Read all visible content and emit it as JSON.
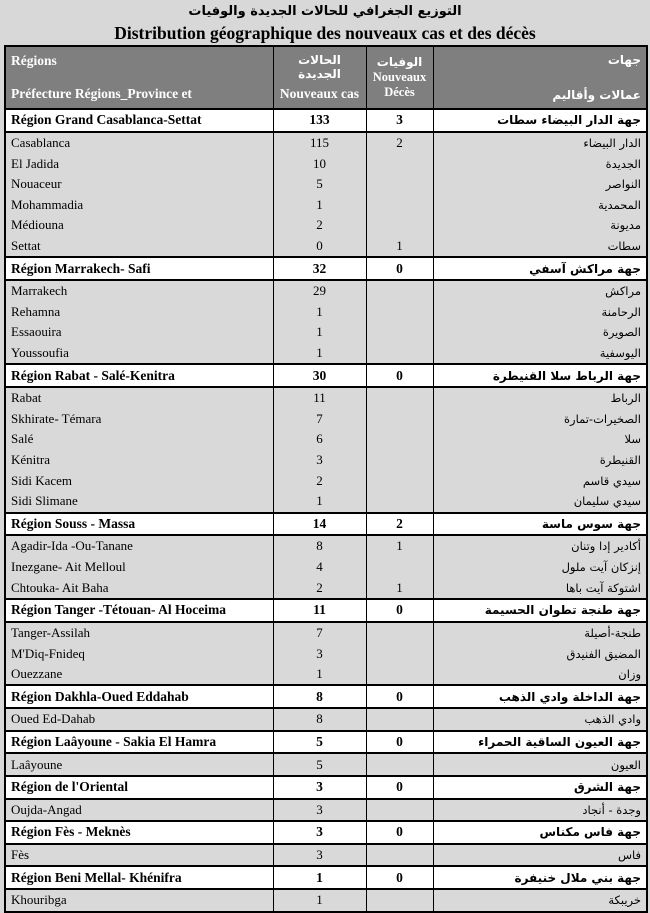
{
  "page": {
    "title_ar": "التوزيع الجغرافي للحالات الجديدة والوفيات",
    "title_fr": "Distribution géographique des nouveaux cas et des décès"
  },
  "colors": {
    "page_background": "#d8d8d8",
    "header_background": "#7f7f7f",
    "header_text": "#ffffff",
    "province_row_background": "#d9d9d9",
    "region_row_background": "#ffffff",
    "border": "#000000"
  },
  "table": {
    "header": {
      "col1_line1": "Régions",
      "col1_line2": "Préfecture Régions_Province et",
      "col2_ar": "الحالات الجديدة",
      "col2_fr": "Nouveaux cas",
      "col3_ar": "الوفيات",
      "col3_fr_line1": "Nouveaux",
      "col3_fr_line2": "Décès",
      "col4_ar_line1": "جهات",
      "col4_ar_line2": "عمالات وأقاليم"
    },
    "rows": [
      {
        "type": "region",
        "name_fr": "Région Grand Casablanca-Settat",
        "cases": "133",
        "deaths": "3",
        "name_ar": "جهة الدار البيضاء سطات"
      },
      {
        "type": "province",
        "name_fr": "Casablanca",
        "cases": "115",
        "deaths": "2",
        "name_ar": "الدار البيضاء"
      },
      {
        "type": "province",
        "name_fr": "El Jadida",
        "cases": "10",
        "deaths": "",
        "name_ar": "الجديدة"
      },
      {
        "type": "province",
        "name_fr": "Nouaceur",
        "cases": "5",
        "deaths": "",
        "name_ar": "النواصر"
      },
      {
        "type": "province",
        "name_fr": "Mohammadia",
        "cases": "1",
        "deaths": "",
        "name_ar": "المحمدية"
      },
      {
        "type": "province",
        "name_fr": "Médiouna",
        "cases": "2",
        "deaths": "",
        "name_ar": "مديونة"
      },
      {
        "type": "province",
        "name_fr": "Settat",
        "cases": "0",
        "deaths": "1",
        "name_ar": "سطات"
      },
      {
        "type": "region",
        "name_fr": "Région Marrakech- Safi",
        "cases": "32",
        "deaths": "0",
        "name_ar": "جهة مراكش آسفي"
      },
      {
        "type": "province",
        "name_fr": "Marrakech",
        "cases": "29",
        "deaths": "",
        "name_ar": "مراكش"
      },
      {
        "type": "province",
        "name_fr": "Rehamna",
        "cases": "1",
        "deaths": "",
        "name_ar": "الرحامنة"
      },
      {
        "type": "province",
        "name_fr": "Essaouira",
        "cases": "1",
        "deaths": "",
        "name_ar": "الصويرة"
      },
      {
        "type": "province",
        "name_fr": "Youssoufia",
        "cases": "1",
        "deaths": "",
        "name_ar": "اليوسفية"
      },
      {
        "type": "region",
        "name_fr": "Région Rabat - Salé-Kenitra",
        "cases": "30",
        "deaths": "0",
        "name_ar": "جهة الرباط سلا القنيطرة"
      },
      {
        "type": "province",
        "name_fr": "Rabat",
        "cases": "11",
        "deaths": "",
        "name_ar": "الرباط"
      },
      {
        "type": "province",
        "name_fr": "Skhirate- Témara",
        "cases": "7",
        "deaths": "",
        "name_ar": "الصخيرات-تمارة"
      },
      {
        "type": "province",
        "name_fr": "Salé",
        "cases": "6",
        "deaths": "",
        "name_ar": "سلا"
      },
      {
        "type": "province",
        "name_fr": "Kénitra",
        "cases": "3",
        "deaths": "",
        "name_ar": "القنيطرة"
      },
      {
        "type": "province",
        "name_fr": "Sidi Kacem",
        "cases": "2",
        "deaths": "",
        "name_ar": "سيدي قاسم"
      },
      {
        "type": "province",
        "name_fr": "Sidi Slimane",
        "cases": "1",
        "deaths": "",
        "name_ar": "سيدي سليمان"
      },
      {
        "type": "region",
        "name_fr": "Région Souss - Massa",
        "cases": "14",
        "deaths": "2",
        "name_ar": "جهة سوس ماسة"
      },
      {
        "type": "province",
        "name_fr": "Agadir-Ida -Ou-Tanane",
        "cases": "8",
        "deaths": "1",
        "name_ar": "أكادير إدا وتنان"
      },
      {
        "type": "province",
        "name_fr": "Inezgane- Ait Melloul",
        "cases": "4",
        "deaths": "",
        "name_ar": "إنزكان آيت ملول"
      },
      {
        "type": "province",
        "name_fr": "Chtouka- Ait Baha",
        "cases": "2",
        "deaths": "1",
        "name_ar": "اشتوكة آيت باها"
      },
      {
        "type": "region",
        "name_fr": "Région Tanger -Tétouan- Al Hoceima",
        "cases": "11",
        "deaths": "0",
        "name_ar": "جهة طنجة تطوان الحسيمة"
      },
      {
        "type": "province",
        "name_fr": "Tanger-Assilah",
        "cases": "7",
        "deaths": "",
        "name_ar": "طنجة-أصيلة"
      },
      {
        "type": "province",
        "name_fr": "M'Diq-Fnideq",
        "cases": "3",
        "deaths": "",
        "name_ar": "المضيق الفنيدق"
      },
      {
        "type": "province",
        "name_fr": "Ouezzane",
        "cases": "1",
        "deaths": "",
        "name_ar": "وزان"
      },
      {
        "type": "region",
        "name_fr": "Région Dakhla-Oued Eddahab",
        "cases": "8",
        "deaths": "0",
        "name_ar": "جهة الداخلة وادي الذهب"
      },
      {
        "type": "province",
        "name_fr": "Oued Ed-Dahab",
        "cases": "8",
        "deaths": "",
        "name_ar": "وادي الذهب"
      },
      {
        "type": "region",
        "name_fr": "Région Laâyoune - Sakia El Hamra",
        "cases": "5",
        "deaths": "0",
        "name_ar": "جهة العيون الساقية الحمراء"
      },
      {
        "type": "province",
        "name_fr": "Laâyoune",
        "cases": "5",
        "deaths": "",
        "name_ar": "العيون"
      },
      {
        "type": "region",
        "name_fr": "Région de l'Oriental",
        "cases": "3",
        "deaths": "0",
        "name_ar": "جهة الشرق"
      },
      {
        "type": "province",
        "name_fr": "Oujda-Angad",
        "cases": "3",
        "deaths": "",
        "name_ar": "وجدة - أنجاد"
      },
      {
        "type": "region",
        "name_fr": "Région Fès - Meknès",
        "cases": "3",
        "deaths": "0",
        "name_ar": "جهة فاس مكناس"
      },
      {
        "type": "province",
        "name_fr": "Fès",
        "cases": "3",
        "deaths": "",
        "name_ar": "فاس"
      },
      {
        "type": "region",
        "name_fr": "Région Beni Mellal- Khénifra",
        "cases": "1",
        "deaths": "0",
        "name_ar": "جهة بني ملال خنيفرة"
      },
      {
        "type": "province",
        "name_fr": "Khouribga",
        "cases": "1",
        "deaths": "",
        "name_ar": "خريبكة"
      }
    ]
  }
}
